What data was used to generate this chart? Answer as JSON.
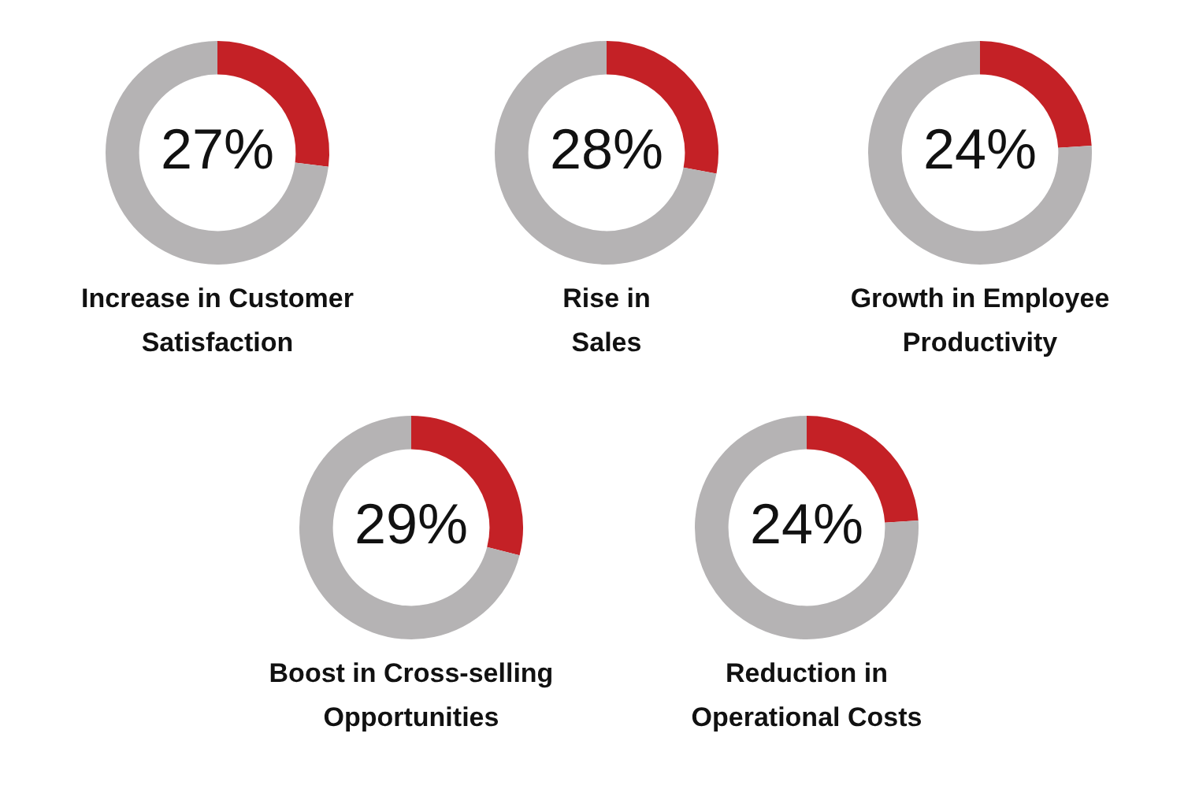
{
  "chart_data": [
    {
      "type": "donut",
      "title": "Increase in Customer\nSatisfaction",
      "categories": [
        null,
        null
      ],
      "values": [
        27,
        73
      ],
      "colors": [
        "#c42126",
        "#b5b3b4"
      ],
      "value_labels": [
        "27%",
        null
      ]
    },
    {
      "type": "donut",
      "title": "Rise in\nSales",
      "categories": [
        null,
        null
      ],
      "values": [
        28,
        72
      ],
      "colors": [
        "#c42126",
        "#b5b3b4"
      ],
      "value_labels": [
        "28%",
        null
      ]
    },
    {
      "type": "donut",
      "title": "Growth in Employee\nProductivity",
      "categories": [
        null,
        null
      ],
      "values": [
        24,
        76
      ],
      "colors": [
        "#c42126",
        "#b5b3b4"
      ],
      "value_labels": [
        "24%",
        null
      ]
    },
    {
      "type": "donut",
      "title": "Boost in Cross-selling\nOpportunities",
      "categories": [
        null,
        null
      ],
      "values": [
        29,
        71
      ],
      "colors": [
        "#c42126",
        "#b5b3b4"
      ],
      "value_labels": [
        "29%",
        null
      ]
    },
    {
      "type": "donut",
      "title": "Reduction in\nOperational Costs",
      "categories": [
        null,
        null
      ],
      "values": [
        24,
        76
      ],
      "colors": [
        "#c42126",
        "#b5b3b4"
      ],
      "value_labels": [
        "24%",
        null
      ]
    }
  ]
}
